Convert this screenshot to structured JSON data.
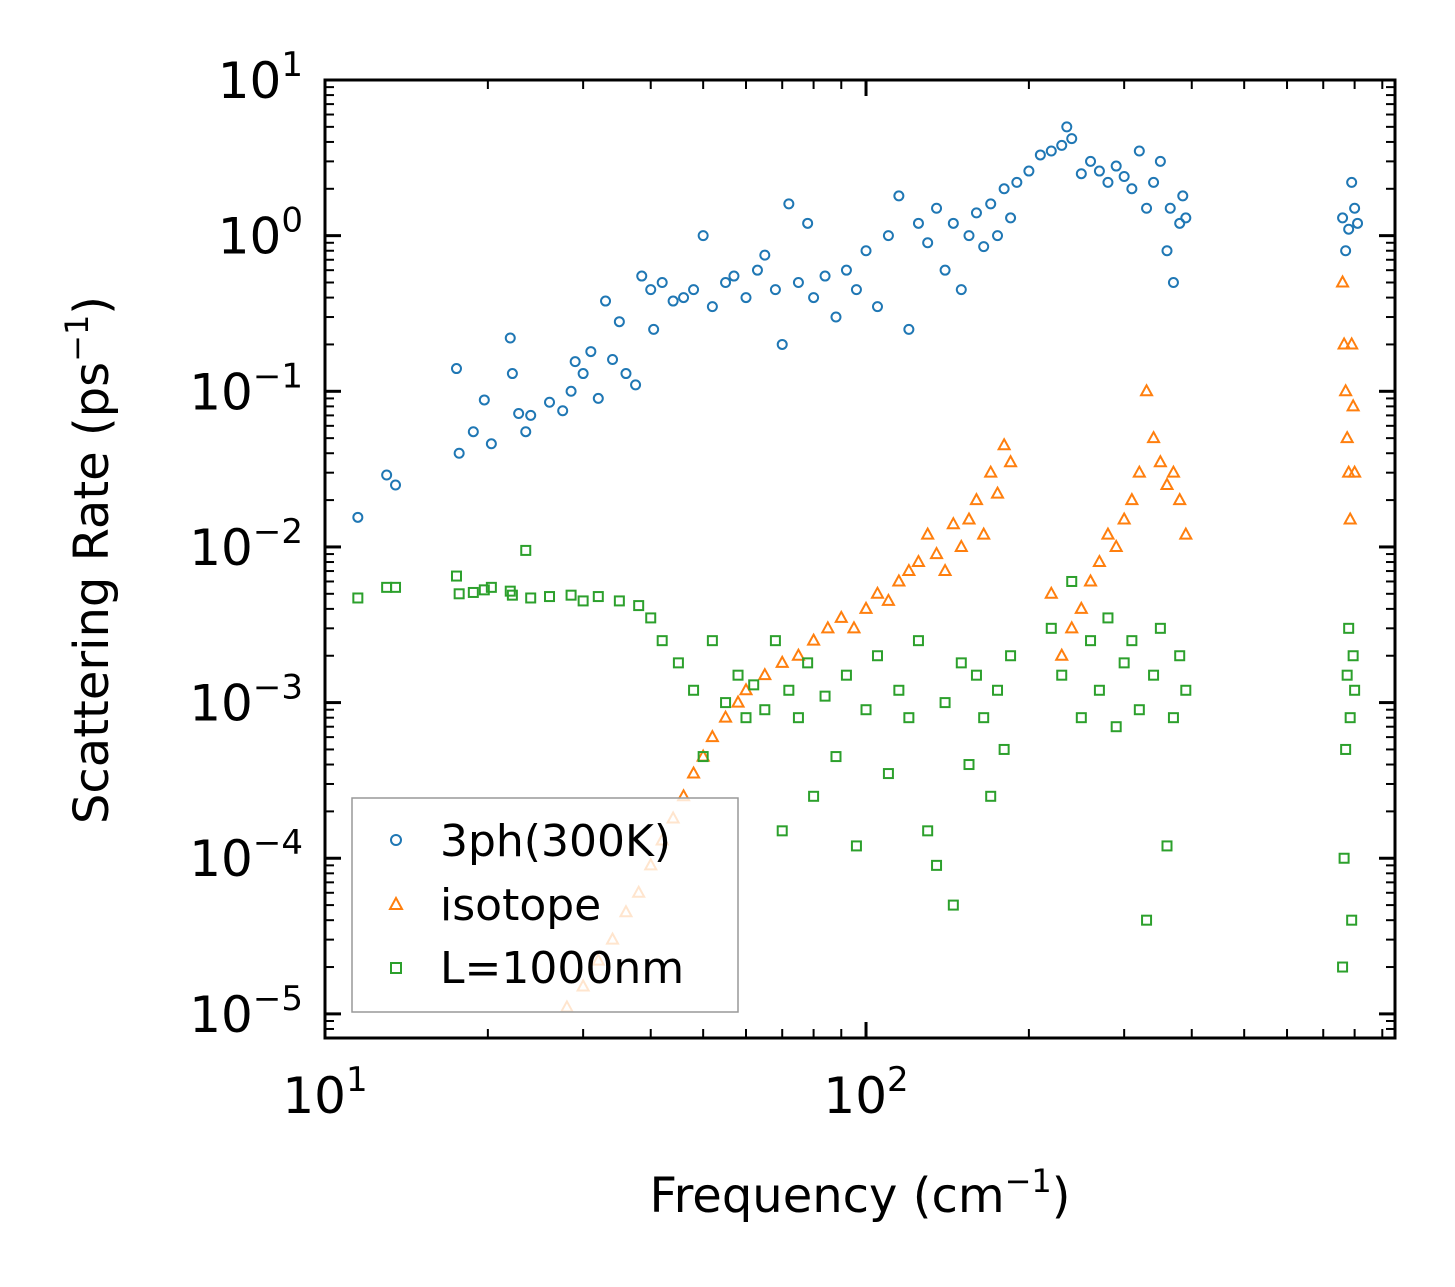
{
  "chart_data": {
    "type": "scatter",
    "title": "",
    "xlabel": "Frequency (cm$^{-1}$)",
    "xlabel_parts": {
      "main": "Frequency (cm",
      "sup": "−1",
      "tail": ")"
    },
    "ylabel": "Scattering Rate (ps$^{-1}$)",
    "ylabel_parts": {
      "main": "Scattering Rate (ps",
      "sup": "−1",
      "tail": ")"
    },
    "xscale": "log",
    "yscale": "log",
    "xlim": [
      10,
      950
    ],
    "ylim": [
      7e-06,
      10
    ],
    "x_ticks": [
      {
        "value": 10,
        "base": "10",
        "exp": "1"
      },
      {
        "value": 100,
        "base": "10",
        "exp": "2"
      }
    ],
    "y_ticks": [
      {
        "value": 10,
        "base": "10",
        "exp": "1"
      },
      {
        "value": 1,
        "base": "10",
        "exp": "0"
      },
      {
        "value": 0.1,
        "base": "10",
        "exp": "−1"
      },
      {
        "value": 0.01,
        "base": "10",
        "exp": "−2"
      },
      {
        "value": 0.001,
        "base": "10",
        "exp": "−3"
      },
      {
        "value": 0.0001,
        "base": "10",
        "exp": "−4"
      },
      {
        "value": 1e-05,
        "base": "10",
        "exp": "−5"
      }
    ],
    "grid": false,
    "legend_position": "bottom-left",
    "series": [
      {
        "name": "3ph(300K)",
        "marker": "circle",
        "color": "#1f77b4",
        "points": [
          [
            11.5,
            0.0155
          ],
          [
            13.0,
            0.029
          ],
          [
            13.5,
            0.025
          ],
          [
            17.5,
            0.14
          ],
          [
            17.7,
            0.04
          ],
          [
            18.8,
            0.055
          ],
          [
            19.7,
            0.088
          ],
          [
            20.3,
            0.046
          ],
          [
            22.0,
            0.22
          ],
          [
            22.2,
            0.13
          ],
          [
            22.8,
            0.072
          ],
          [
            23.5,
            0.055
          ],
          [
            24.0,
            0.07
          ],
          [
            26.0,
            0.085
          ],
          [
            27.5,
            0.075
          ],
          [
            28.5,
            0.1
          ],
          [
            29.0,
            0.155
          ],
          [
            30.0,
            0.13
          ],
          [
            31.0,
            0.18
          ],
          [
            32.0,
            0.09
          ],
          [
            33.0,
            0.38
          ],
          [
            34.0,
            0.16
          ],
          [
            35.0,
            0.28
          ],
          [
            36.0,
            0.13
          ],
          [
            37.5,
            0.11
          ],
          [
            38.5,
            0.55
          ],
          [
            40.0,
            0.45
          ],
          [
            40.5,
            0.25
          ],
          [
            42.0,
            0.5
          ],
          [
            44.0,
            0.38
          ],
          [
            46.0,
            0.4
          ],
          [
            48.0,
            0.45
          ],
          [
            50.0,
            1.0
          ],
          [
            52.0,
            0.35
          ],
          [
            55.0,
            0.5
          ],
          [
            57.0,
            0.55
          ],
          [
            60.0,
            0.4
          ],
          [
            63.0,
            0.6
          ],
          [
            65.0,
            0.75
          ],
          [
            68.0,
            0.45
          ],
          [
            70.0,
            0.2
          ],
          [
            72.0,
            1.6
          ],
          [
            75.0,
            0.5
          ],
          [
            78.0,
            1.2
          ],
          [
            80.0,
            0.4
          ],
          [
            84.0,
            0.55
          ],
          [
            88.0,
            0.3
          ],
          [
            92.0,
            0.6
          ],
          [
            96.0,
            0.45
          ],
          [
            100.0,
            0.8
          ],
          [
            105.0,
            0.35
          ],
          [
            110.0,
            1.0
          ],
          [
            115.0,
            1.8
          ],
          [
            120.0,
            0.25
          ],
          [
            125.0,
            1.2
          ],
          [
            130.0,
            0.9
          ],
          [
            135.0,
            1.5
          ],
          [
            140.0,
            0.6
          ],
          [
            145.0,
            1.2
          ],
          [
            150.0,
            0.45
          ],
          [
            155.0,
            1.0
          ],
          [
            160.0,
            1.4
          ],
          [
            165.0,
            0.85
          ],
          [
            170.0,
            1.6
          ],
          [
            175.0,
            1.0
          ],
          [
            180.0,
            2.0
          ],
          [
            185.0,
            1.3
          ],
          [
            190.0,
            2.2
          ],
          [
            200.0,
            2.6
          ],
          [
            210.0,
            3.3
          ],
          [
            220.0,
            3.5
          ],
          [
            230.0,
            3.8
          ],
          [
            235.0,
            5.0
          ],
          [
            240.0,
            4.2
          ],
          [
            250.0,
            2.5
          ],
          [
            260.0,
            3.0
          ],
          [
            270.0,
            2.6
          ],
          [
            280.0,
            2.2
          ],
          [
            290.0,
            2.8
          ],
          [
            300.0,
            2.4
          ],
          [
            310.0,
            2.0
          ],
          [
            320.0,
            3.5
          ],
          [
            330.0,
            1.5
          ],
          [
            340.0,
            2.2
          ],
          [
            350.0,
            3.0
          ],
          [
            360.0,
            0.8
          ],
          [
            365.0,
            1.5
          ],
          [
            370.0,
            0.5
          ],
          [
            380.0,
            1.2
          ],
          [
            385.0,
            1.8
          ],
          [
            390.0,
            1.3
          ],
          [
            760.0,
            1.3
          ],
          [
            770.0,
            0.8
          ],
          [
            780.0,
            1.1
          ],
          [
            790.0,
            2.2
          ],
          [
            800.0,
            1.5
          ],
          [
            810.0,
            1.2
          ]
        ]
      },
      {
        "name": "isotope",
        "marker": "triangle",
        "color": "#ff7f0e",
        "points": [
          [
            28.0,
            1.1e-05
          ],
          [
            30.0,
            1.5e-05
          ],
          [
            32.0,
            2.2e-05
          ],
          [
            34.0,
            3e-05
          ],
          [
            36.0,
            4.5e-05
          ],
          [
            38.0,
            6e-05
          ],
          [
            40.0,
            9e-05
          ],
          [
            42.0,
            0.00013
          ],
          [
            44.0,
            0.00018
          ],
          [
            46.0,
            0.00025
          ],
          [
            48.0,
            0.00035
          ],
          [
            50.0,
            0.00045
          ],
          [
            52.0,
            0.0006
          ],
          [
            55.0,
            0.0008
          ],
          [
            58.0,
            0.001
          ],
          [
            60.0,
            0.0012
          ],
          [
            65.0,
            0.0015
          ],
          [
            70.0,
            0.0018
          ],
          [
            75.0,
            0.002
          ],
          [
            80.0,
            0.0025
          ],
          [
            85.0,
            0.003
          ],
          [
            90.0,
            0.0035
          ],
          [
            95.0,
            0.003
          ],
          [
            100.0,
            0.004
          ],
          [
            105.0,
            0.005
          ],
          [
            110.0,
            0.0045
          ],
          [
            115.0,
            0.006
          ],
          [
            120.0,
            0.007
          ],
          [
            125.0,
            0.008
          ],
          [
            130.0,
            0.012
          ],
          [
            135.0,
            0.009
          ],
          [
            140.0,
            0.007
          ],
          [
            145.0,
            0.014
          ],
          [
            150.0,
            0.01
          ],
          [
            155.0,
            0.015
          ],
          [
            160.0,
            0.02
          ],
          [
            165.0,
            0.012
          ],
          [
            170.0,
            0.03
          ],
          [
            175.0,
            0.022
          ],
          [
            180.0,
            0.045
          ],
          [
            185.0,
            0.035
          ],
          [
            220.0,
            0.005
          ],
          [
            230.0,
            0.002
          ],
          [
            240.0,
            0.003
          ],
          [
            250.0,
            0.004
          ],
          [
            260.0,
            0.006
          ],
          [
            270.0,
            0.008
          ],
          [
            280.0,
            0.012
          ],
          [
            290.0,
            0.01
          ],
          [
            300.0,
            0.015
          ],
          [
            310.0,
            0.02
          ],
          [
            320.0,
            0.03
          ],
          [
            330.0,
            0.1
          ],
          [
            340.0,
            0.05
          ],
          [
            350.0,
            0.035
          ],
          [
            360.0,
            0.025
          ],
          [
            370.0,
            0.03
          ],
          [
            380.0,
            0.02
          ],
          [
            390.0,
            0.012
          ],
          [
            760.0,
            0.5
          ],
          [
            765.0,
            0.2
          ],
          [
            770.0,
            0.1
          ],
          [
            775.0,
            0.05
          ],
          [
            780.0,
            0.03
          ],
          [
            785.0,
            0.015
          ],
          [
            790.0,
            0.2
          ],
          [
            795.0,
            0.08
          ],
          [
            800.0,
            0.03
          ]
        ]
      },
      {
        "name": "L=1000nm",
        "marker": "square",
        "color": "#2ca02c",
        "points": [
          [
            11.5,
            0.0047
          ],
          [
            13.0,
            0.0055
          ],
          [
            13.5,
            0.0055
          ],
          [
            17.5,
            0.0065
          ],
          [
            17.7,
            0.005
          ],
          [
            18.8,
            0.0051
          ],
          [
            19.7,
            0.0053
          ],
          [
            20.3,
            0.0055
          ],
          [
            22.0,
            0.0052
          ],
          [
            22.2,
            0.0049
          ],
          [
            23.5,
            0.0095
          ],
          [
            24.0,
            0.0047
          ],
          [
            26.0,
            0.0048
          ],
          [
            28.5,
            0.0049
          ],
          [
            30.0,
            0.0045
          ],
          [
            32.0,
            0.0048
          ],
          [
            35.0,
            0.0045
          ],
          [
            38.0,
            0.0042
          ],
          [
            40.0,
            0.0035
          ],
          [
            42.0,
            0.0025
          ],
          [
            45.0,
            0.0018
          ],
          [
            48.0,
            0.0012
          ],
          [
            50.0,
            0.00045
          ],
          [
            52.0,
            0.0025
          ],
          [
            55.0,
            0.001
          ],
          [
            58.0,
            0.0015
          ],
          [
            60.0,
            0.0008
          ],
          [
            62.0,
            0.0013
          ],
          [
            65.0,
            0.0009
          ],
          [
            68.0,
            0.0025
          ],
          [
            70.0,
            0.00015
          ],
          [
            72.0,
            0.0012
          ],
          [
            75.0,
            0.0008
          ],
          [
            78.0,
            0.0018
          ],
          [
            80.0,
            0.00025
          ],
          [
            84.0,
            0.0011
          ],
          [
            88.0,
            0.00045
          ],
          [
            92.0,
            0.0015
          ],
          [
            96.0,
            0.00012
          ],
          [
            100.0,
            0.0009
          ],
          [
            105.0,
            0.002
          ],
          [
            110.0,
            0.00035
          ],
          [
            115.0,
            0.0012
          ],
          [
            120.0,
            0.0008
          ],
          [
            125.0,
            0.0025
          ],
          [
            130.0,
            0.00015
          ],
          [
            135.0,
            9e-05
          ],
          [
            140.0,
            0.001
          ],
          [
            145.0,
            5e-05
          ],
          [
            150.0,
            0.0018
          ],
          [
            155.0,
            0.0004
          ],
          [
            160.0,
            0.0015
          ],
          [
            165.0,
            0.0008
          ],
          [
            170.0,
            0.00025
          ],
          [
            175.0,
            0.0012
          ],
          [
            180.0,
            0.0005
          ],
          [
            185.0,
            0.002
          ],
          [
            220.0,
            0.003
          ],
          [
            230.0,
            0.0015
          ],
          [
            240.0,
            0.006
          ],
          [
            250.0,
            0.0008
          ],
          [
            260.0,
            0.0025
          ],
          [
            270.0,
            0.0012
          ],
          [
            280.0,
            0.0035
          ],
          [
            290.0,
            0.0007
          ],
          [
            300.0,
            0.0018
          ],
          [
            310.0,
            0.0025
          ],
          [
            320.0,
            0.0009
          ],
          [
            330.0,
            4e-05
          ],
          [
            340.0,
            0.0015
          ],
          [
            350.0,
            0.003
          ],
          [
            360.0,
            0.00012
          ],
          [
            370.0,
            0.0008
          ],
          [
            380.0,
            0.002
          ],
          [
            390.0,
            0.0012
          ],
          [
            760.0,
            2e-05
          ],
          [
            765.0,
            0.0001
          ],
          [
            770.0,
            0.0005
          ],
          [
            775.0,
            0.0015
          ],
          [
            780.0,
            0.003
          ],
          [
            785.0,
            0.0008
          ],
          [
            790.0,
            4e-05
          ],
          [
            795.0,
            0.002
          ],
          [
            800.0,
            0.0012
          ]
        ]
      }
    ]
  }
}
